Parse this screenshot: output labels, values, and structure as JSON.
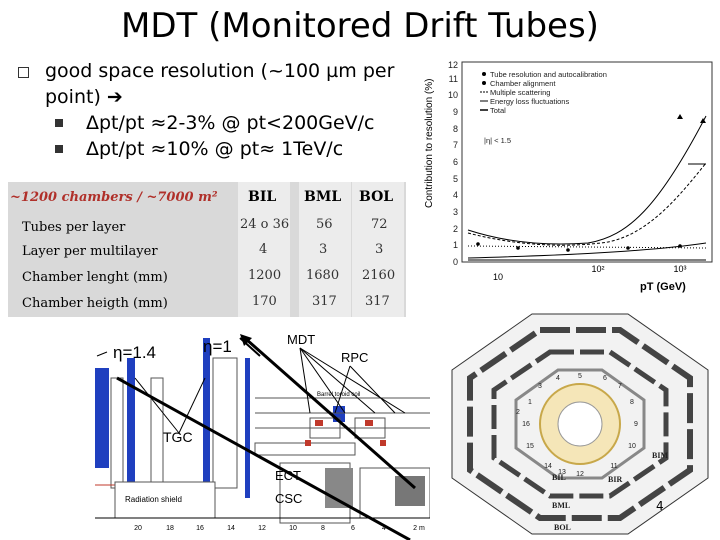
{
  "title": "MDT (Monitored Drift Tubes)",
  "bullets": {
    "main": "good space resolution (~100 µm per point) ➔",
    "sub1": "Δpt/pt ≈2-3% @ pt<200GeV/c",
    "sub2": "Δpt/pt ≈10% @ pt≈ 1TeV/c"
  },
  "table": {
    "caption": "~1200 chambers / ~7000 m²",
    "headers": [
      "BIL",
      "BML",
      "BOL"
    ],
    "rows": [
      {
        "label": "Tubes per layer",
        "values": [
          "24 o 36",
          "56",
          "72"
        ]
      },
      {
        "label": "Layer per multilayer",
        "values": [
          "4",
          "3",
          "3"
        ]
      },
      {
        "label": "Chamber lenght (mm)",
        "values": [
          "1200",
          "1680",
          "2160"
        ]
      },
      {
        "label": "Chamber heigth (mm)",
        "values": [
          "170",
          "317",
          "317"
        ]
      }
    ]
  },
  "plot": {
    "ylabel": "Contribution to resolution (%)",
    "xlabel": "pT (GeV)",
    "yticks": [
      "0",
      "1",
      "2",
      "3",
      "4",
      "5",
      "6",
      "7",
      "8",
      "9",
      "10",
      "11",
      "12"
    ],
    "xticks": [
      "10",
      "10²",
      "10³"
    ],
    "legend": [
      "Tube resolution and autocalibration",
      "Chamber alignment",
      "Multiple scattering",
      "Energy loss fluctuations",
      "Total"
    ],
    "note": "|η| < 1.5"
  },
  "schematic": {
    "eta14": "η=1.4",
    "eta1": "η=1",
    "mdt": "MDT",
    "rpc": "RPC",
    "tgc": "TGC",
    "ect": "ECT",
    "csc": "CSC",
    "toroid": "Barrel toroid coil",
    "shield": "Radiation shield",
    "xticks": [
      "20",
      "18",
      "16",
      "14",
      "12",
      "10",
      "8",
      "6",
      "4",
      "2 m"
    ]
  },
  "octagon": {
    "labels": [
      "BIL",
      "BIR",
      "BIM",
      "BML",
      "BOL"
    ],
    "numbers": [
      "1",
      "2",
      "3",
      "4",
      "5",
      "6",
      "7",
      "8",
      "9",
      "10",
      "11",
      "12",
      "13",
      "14",
      "15",
      "16"
    ]
  },
  "page_number": "4",
  "colors": {
    "caption_red": "#b0302a",
    "table_bg": "#d9d9d9",
    "arrow": "#000000",
    "blue_chamber": "#1f3fbf"
  }
}
